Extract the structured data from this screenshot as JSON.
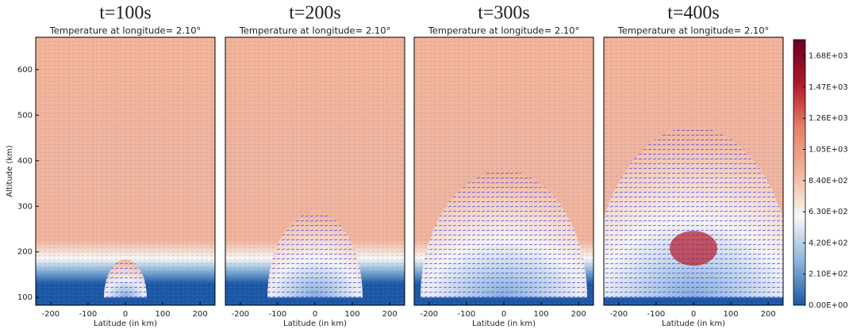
{
  "chart_data": [
    {
      "type": "heatmap",
      "title": "t=100s",
      "subtitle": "Temperature at longitude= 2.10°",
      "xlabel": "Latitude (in km)",
      "ylabel": "Altitude (km)",
      "xlim": [
        -240,
        240
      ],
      "ylim": [
        83,
        671
      ],
      "xticks": [
        -200,
        -100,
        0,
        100,
        200
      ],
      "yticks": [
        100,
        200,
        300,
        400,
        500,
        600
      ]
    },
    {
      "type": "heatmap",
      "title": "t=200s",
      "subtitle": "Temperature at longitude= 2.10°",
      "xlabel": "Latitude (in km)",
      "xlim": [
        -240,
        240
      ],
      "ylim": [
        83,
        671
      ],
      "xticks": [
        -200,
        -100,
        0,
        100,
        200
      ]
    },
    {
      "type": "heatmap",
      "title": "t=300s",
      "subtitle": "Temperature at longitude= 2.10°",
      "xlabel": "Latitude (in km)",
      "xlim": [
        -240,
        240
      ],
      "ylim": [
        83,
        671
      ],
      "xticks": [
        -200,
        -100,
        0,
        100,
        200
      ]
    },
    {
      "type": "heatmap",
      "title": "t=400s",
      "subtitle": "Temperature at longitude= 2.10°",
      "xlabel": "Latitude (in km)",
      "xlim": [
        -240,
        240
      ],
      "ylim": [
        83,
        671
      ],
      "xticks": [
        -200,
        -100,
        0,
        100,
        200
      ]
    }
  ],
  "colorbar": {
    "clim": [
      0,
      1790
    ],
    "colormap": [
      "#1c57a5",
      "#8db5da",
      "#f7f7f7",
      "#f2b49a",
      "#e4826a",
      "#b2182b",
      "#67001f"
    ],
    "ticks": [
      {
        "value": 0,
        "label": "0.00E+00"
      },
      {
        "value": 210,
        "label": "2.10E+02"
      },
      {
        "value": 420,
        "label": "4.20E+02"
      },
      {
        "value": 630,
        "label": "6.30E+02"
      },
      {
        "value": 840,
        "label": "8.40E+02"
      },
      {
        "value": 1050,
        "label": "1.05E+03"
      },
      {
        "value": 1260,
        "label": "1.26E+03"
      },
      {
        "value": 1470,
        "label": "1.47E+03"
      },
      {
        "value": 1680,
        "label": "1.68E+03"
      }
    ]
  }
}
